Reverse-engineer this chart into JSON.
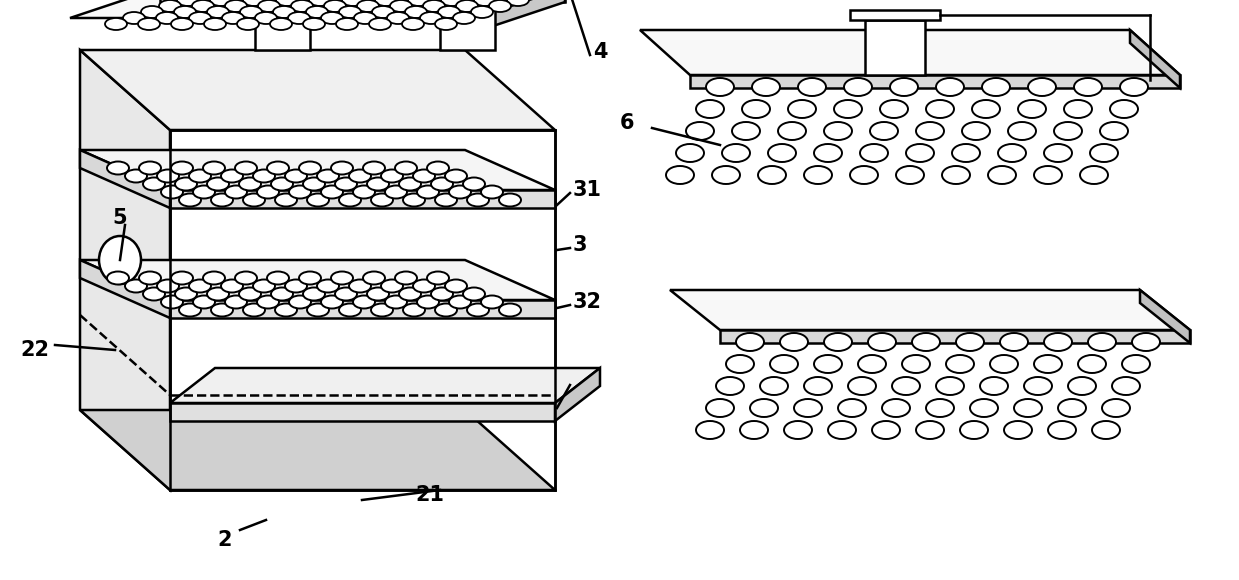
{
  "bg_color": "#ffffff",
  "lc": "#000000",
  "lw": 1.8,
  "label_fontsize": 15,
  "label_fontweight": "bold"
}
